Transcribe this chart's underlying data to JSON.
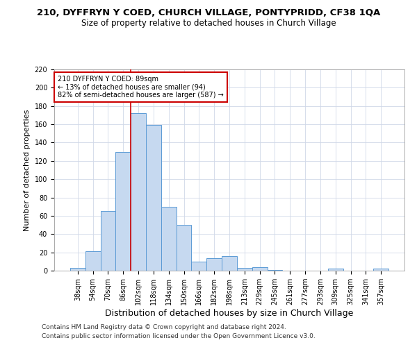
{
  "title": "210, DYFFRYN Y COED, CHURCH VILLAGE, PONTYPRIDD, CF38 1QA",
  "subtitle": "Size of property relative to detached houses in Church Village",
  "xlabel": "Distribution of detached houses by size in Church Village",
  "ylabel": "Number of detached properties",
  "bin_labels": [
    "38sqm",
    "54sqm",
    "70sqm",
    "86sqm",
    "102sqm",
    "118sqm",
    "134sqm",
    "150sqm",
    "166sqm",
    "182sqm",
    "198sqm",
    "213sqm",
    "229sqm",
    "245sqm",
    "261sqm",
    "277sqm",
    "293sqm",
    "309sqm",
    "325sqm",
    "341sqm",
    "357sqm"
  ],
  "bar_heights": [
    3,
    21,
    65,
    130,
    172,
    159,
    70,
    50,
    10,
    14,
    16,
    3,
    4,
    1,
    0,
    0,
    0,
    2,
    0,
    0,
    2
  ],
  "bar_color": "#c6d9f0",
  "bar_edge_color": "#5b9bd5",
  "vline_x": 3.5,
  "annotation_text": "210 DYFFRYN Y COED: 89sqm\n← 13% of detached houses are smaller (94)\n82% of semi-detached houses are larger (587) →",
  "annotation_box_color": "#ffffff",
  "annotation_box_edge": "#cc0000",
  "vline_color": "#cc0000",
  "footer1": "Contains HM Land Registry data © Crown copyright and database right 2024.",
  "footer2": "Contains public sector information licensed under the Open Government Licence v3.0.",
  "ylim": [
    0,
    220
  ],
  "yticks": [
    0,
    20,
    40,
    60,
    80,
    100,
    120,
    140,
    160,
    180,
    200,
    220
  ],
  "grid_color": "#d0d8e8",
  "title_fontsize": 9.5,
  "subtitle_fontsize": 8.5,
  "xlabel_fontsize": 9,
  "ylabel_fontsize": 8,
  "tick_fontsize": 7,
  "annot_fontsize": 7,
  "footer_fontsize": 6.5
}
